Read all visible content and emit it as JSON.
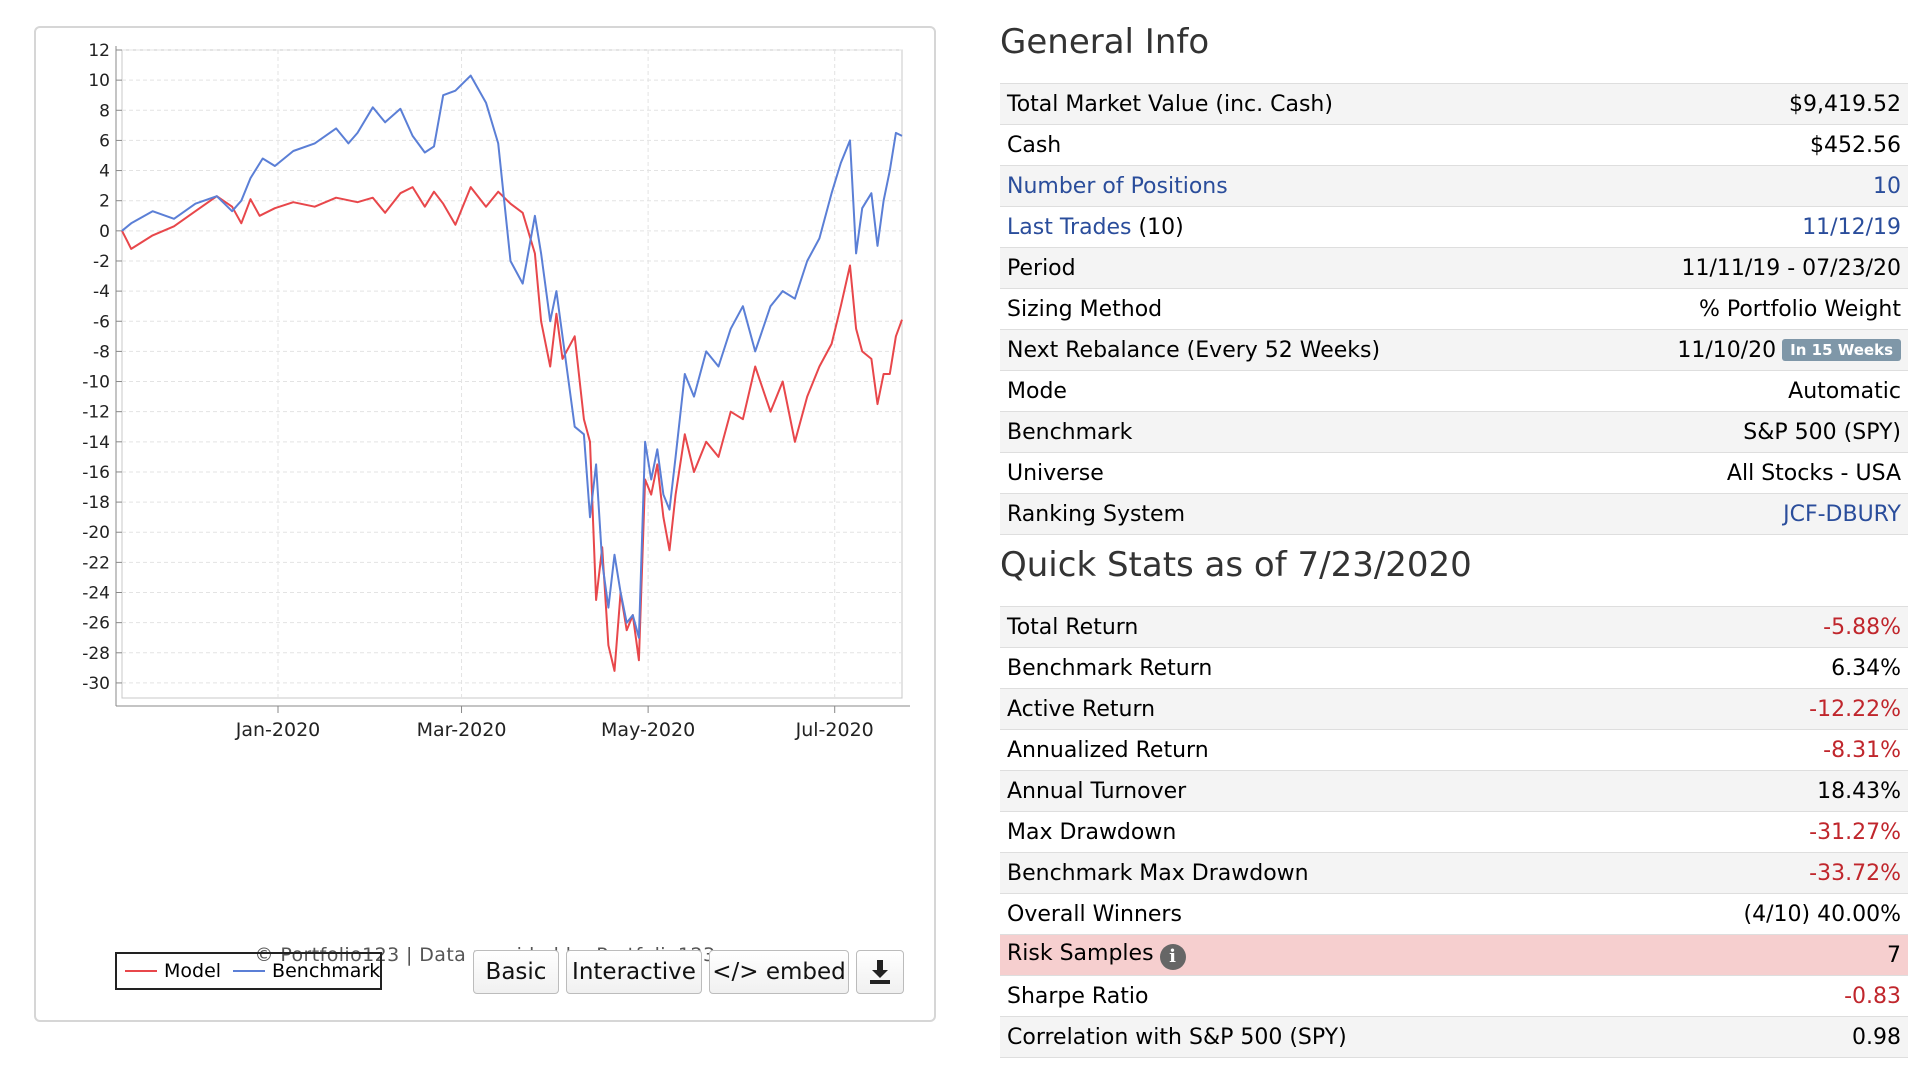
{
  "chart": {
    "credit": "© Portfolio123 | Data provided by Portfolio123",
    "legend": {
      "model": "Model",
      "benchmark": "Benchmark"
    },
    "colors": {
      "model": "#e8474b",
      "benchmark": "#5b7fd6"
    }
  },
  "buttons": {
    "basic": "Basic",
    "interactive": "Interactive",
    "embed": "</> embed",
    "download_icon": "download-icon"
  },
  "chart_data": {
    "type": "line",
    "x_start": "2019-11-11",
    "x_end": "2020-07-23",
    "ylim": [
      -31,
      12
    ],
    "yticks": [
      12,
      10,
      8,
      6,
      4,
      2,
      0,
      -2,
      -4,
      -6,
      -8,
      -10,
      -12,
      -14,
      -16,
      -18,
      -20,
      -22,
      -24,
      -26,
      -28,
      -30
    ],
    "xticks": [
      {
        "label": "Jan-2020",
        "date": "2020-01-01"
      },
      {
        "label": "Mar-2020",
        "date": "2020-03-01"
      },
      {
        "label": "May-2020",
        "date": "2020-05-01"
      },
      {
        "label": "Jul-2020",
        "date": "2020-07-01"
      }
    ],
    "grid": true,
    "legend_position": "bottom-left",
    "series": [
      {
        "name": "Model",
        "color": "#e8474b",
        "points": [
          [
            "2019-11-11",
            0
          ],
          [
            "2019-11-14",
            -1.2
          ],
          [
            "2019-11-21",
            -0.3
          ],
          [
            "2019-11-28",
            0.3
          ],
          [
            "2019-12-05",
            1.3
          ],
          [
            "2019-12-12",
            2.3
          ],
          [
            "2019-12-17",
            1.6
          ],
          [
            "2019-12-20",
            0.5
          ],
          [
            "2019-12-23",
            2.1
          ],
          [
            "2019-12-26",
            1.0
          ],
          [
            "2019-12-31",
            1.5
          ],
          [
            "2020-01-06",
            1.9
          ],
          [
            "2020-01-13",
            1.6
          ],
          [
            "2020-01-20",
            2.2
          ],
          [
            "2020-01-27",
            1.9
          ],
          [
            "2020-02-01",
            2.2
          ],
          [
            "2020-02-05",
            1.2
          ],
          [
            "2020-02-10",
            2.5
          ],
          [
            "2020-02-14",
            2.9
          ],
          [
            "2020-02-18",
            1.6
          ],
          [
            "2020-02-21",
            2.6
          ],
          [
            "2020-02-24",
            1.8
          ],
          [
            "2020-02-28",
            0.4
          ],
          [
            "2020-03-04",
            2.9
          ],
          [
            "2020-03-09",
            1.6
          ],
          [
            "2020-03-13",
            2.6
          ],
          [
            "2020-03-17",
            1.8
          ],
          [
            "2020-03-21",
            1.2
          ],
          [
            "2020-03-25",
            -1.5
          ],
          [
            "2020-03-27",
            -6.0
          ],
          [
            "2020-03-30",
            -9.0
          ],
          [
            "2020-04-01",
            -5.5
          ],
          [
            "2020-04-03",
            -8.5
          ],
          [
            "2020-04-07",
            -7.0
          ],
          [
            "2020-04-10",
            -12.5
          ],
          [
            "2020-04-12",
            -14.0
          ],
          [
            "2020-04-14",
            -24.5
          ],
          [
            "2020-04-16",
            -21.0
          ],
          [
            "2020-04-18",
            -27.5
          ],
          [
            "2020-04-20",
            -29.2
          ],
          [
            "2020-04-22",
            -24.0
          ],
          [
            "2020-04-24",
            -26.5
          ],
          [
            "2020-04-26",
            -25.5
          ],
          [
            "2020-04-28",
            -28.5
          ],
          [
            "2020-04-30",
            -16.5
          ],
          [
            "2020-05-02",
            -17.5
          ],
          [
            "2020-05-04",
            -15.5
          ],
          [
            "2020-05-06",
            -19.0
          ],
          [
            "2020-05-08",
            -21.2
          ],
          [
            "2020-05-10",
            -17.5
          ],
          [
            "2020-05-13",
            -13.5
          ],
          [
            "2020-05-16",
            -16.0
          ],
          [
            "2020-05-20",
            -14.0
          ],
          [
            "2020-05-24",
            -15.0
          ],
          [
            "2020-05-28",
            -12.0
          ],
          [
            "2020-06-01",
            -12.5
          ],
          [
            "2020-06-05",
            -9.0
          ],
          [
            "2020-06-10",
            -12.0
          ],
          [
            "2020-06-14",
            -10.0
          ],
          [
            "2020-06-18",
            -14.0
          ],
          [
            "2020-06-22",
            -11.0
          ],
          [
            "2020-06-26",
            -9.0
          ],
          [
            "2020-06-30",
            -7.5
          ],
          [
            "2020-07-03",
            -5.0
          ],
          [
            "2020-07-06",
            -2.3
          ],
          [
            "2020-07-08",
            -6.5
          ],
          [
            "2020-07-10",
            -8.0
          ],
          [
            "2020-07-13",
            -8.5
          ],
          [
            "2020-07-15",
            -11.5
          ],
          [
            "2020-07-17",
            -9.5
          ],
          [
            "2020-07-19",
            -9.5
          ],
          [
            "2020-07-21",
            -7.0
          ],
          [
            "2020-07-23",
            -5.9
          ]
        ]
      },
      {
        "name": "Benchmark",
        "color": "#5b7fd6",
        "points": [
          [
            "2019-11-11",
            0
          ],
          [
            "2019-11-14",
            0.5
          ],
          [
            "2019-11-21",
            1.3
          ],
          [
            "2019-11-28",
            0.8
          ],
          [
            "2019-12-05",
            1.8
          ],
          [
            "2019-12-12",
            2.3
          ],
          [
            "2019-12-17",
            1.3
          ],
          [
            "2019-12-20",
            2.0
          ],
          [
            "2019-12-23",
            3.5
          ],
          [
            "2019-12-27",
            4.8
          ],
          [
            "2019-12-31",
            4.3
          ],
          [
            "2020-01-06",
            5.3
          ],
          [
            "2020-01-13",
            5.8
          ],
          [
            "2020-01-20",
            6.8
          ],
          [
            "2020-01-24",
            5.8
          ],
          [
            "2020-01-27",
            6.5
          ],
          [
            "2020-02-01",
            8.2
          ],
          [
            "2020-02-05",
            7.2
          ],
          [
            "2020-02-10",
            8.1
          ],
          [
            "2020-02-14",
            6.3
          ],
          [
            "2020-02-18",
            5.2
          ],
          [
            "2020-02-21",
            5.6
          ],
          [
            "2020-02-24",
            9.0
          ],
          [
            "2020-02-28",
            9.3
          ],
          [
            "2020-03-04",
            10.3
          ],
          [
            "2020-03-09",
            8.5
          ],
          [
            "2020-03-13",
            5.8
          ],
          [
            "2020-03-17",
            -2.0
          ],
          [
            "2020-03-21",
            -3.5
          ],
          [
            "2020-03-25",
            1.0
          ],
          [
            "2020-03-27",
            -1.5
          ],
          [
            "2020-03-30",
            -6.0
          ],
          [
            "2020-04-01",
            -4.0
          ],
          [
            "2020-04-03",
            -7.0
          ],
          [
            "2020-04-07",
            -13.0
          ],
          [
            "2020-04-10",
            -13.5
          ],
          [
            "2020-04-12",
            -19.0
          ],
          [
            "2020-04-14",
            -15.5
          ],
          [
            "2020-04-16",
            -22.0
          ],
          [
            "2020-04-18",
            -25.0
          ],
          [
            "2020-04-20",
            -21.5
          ],
          [
            "2020-04-22",
            -24.0
          ],
          [
            "2020-04-24",
            -26.0
          ],
          [
            "2020-04-26",
            -25.5
          ],
          [
            "2020-04-28",
            -27.0
          ],
          [
            "2020-04-30",
            -14.0
          ],
          [
            "2020-05-02",
            -16.5
          ],
          [
            "2020-05-04",
            -14.5
          ],
          [
            "2020-05-06",
            -17.5
          ],
          [
            "2020-05-08",
            -18.5
          ],
          [
            "2020-05-10",
            -15.0
          ],
          [
            "2020-05-13",
            -9.5
          ],
          [
            "2020-05-16",
            -11.0
          ],
          [
            "2020-05-20",
            -8.0
          ],
          [
            "2020-05-24",
            -9.0
          ],
          [
            "2020-05-28",
            -6.5
          ],
          [
            "2020-06-01",
            -5.0
          ],
          [
            "2020-06-05",
            -8.0
          ],
          [
            "2020-06-10",
            -5.0
          ],
          [
            "2020-06-14",
            -4.0
          ],
          [
            "2020-06-18",
            -4.5
          ],
          [
            "2020-06-22",
            -2.0
          ],
          [
            "2020-06-26",
            -0.5
          ],
          [
            "2020-06-30",
            2.5
          ],
          [
            "2020-07-03",
            4.5
          ],
          [
            "2020-07-06",
            6.0
          ],
          [
            "2020-07-08",
            -1.5
          ],
          [
            "2020-07-10",
            1.5
          ],
          [
            "2020-07-13",
            2.5
          ],
          [
            "2020-07-15",
            -1.0
          ],
          [
            "2020-07-17",
            2.0
          ],
          [
            "2020-07-19",
            4.0
          ],
          [
            "2020-07-21",
            6.5
          ],
          [
            "2020-07-23",
            6.3
          ]
        ]
      }
    ]
  },
  "general_info": {
    "title": "General Info",
    "rows": [
      {
        "label": "Total Market Value (inc. Cash)",
        "value": "$9,419.52"
      },
      {
        "label": "Cash",
        "value": "$452.56"
      },
      {
        "label": "Number of Positions",
        "value": "10"
      },
      {
        "label": "Last Trades",
        "label_suffix": " (10)",
        "value": "11/12/19"
      },
      {
        "label": "Period",
        "value": "11/11/19 - 07/23/20"
      },
      {
        "label": "Sizing Method",
        "value": "% Portfolio Weight"
      },
      {
        "label": "Next Rebalance (Every 52 Weeks)",
        "value": "11/10/20",
        "badge": "In 15 Weeks"
      },
      {
        "label": "Mode",
        "value": "Automatic"
      },
      {
        "label": "Benchmark",
        "value": "S&P 500 (SPY)"
      },
      {
        "label": "Universe",
        "value": "All Stocks - USA"
      },
      {
        "label": "Ranking System",
        "value": "JCF-DBURY"
      }
    ]
  },
  "quick_stats": {
    "title": "Quick Stats as of 7/23/2020",
    "info_icon": "i",
    "rows": [
      {
        "label": "Total Return",
        "value": "-5.88%"
      },
      {
        "label": "Benchmark Return",
        "value": "6.34%"
      },
      {
        "label": "Active Return",
        "value": "-12.22%"
      },
      {
        "label": "Annualized Return",
        "value": "-8.31%"
      },
      {
        "label": "Annual Turnover",
        "value": "18.43%"
      },
      {
        "label": "Max Drawdown",
        "value": "-31.27%"
      },
      {
        "label": "Benchmark Max Drawdown",
        "value": "-33.72%"
      },
      {
        "label": "Overall Winners",
        "value": "(4/10) 40.00%"
      },
      {
        "label": "Risk Samples",
        "value": "7"
      },
      {
        "label": "Sharpe Ratio",
        "value": "-0.83"
      },
      {
        "label": "Correlation with S&P 500 (SPY)",
        "value": "0.98"
      }
    ]
  }
}
